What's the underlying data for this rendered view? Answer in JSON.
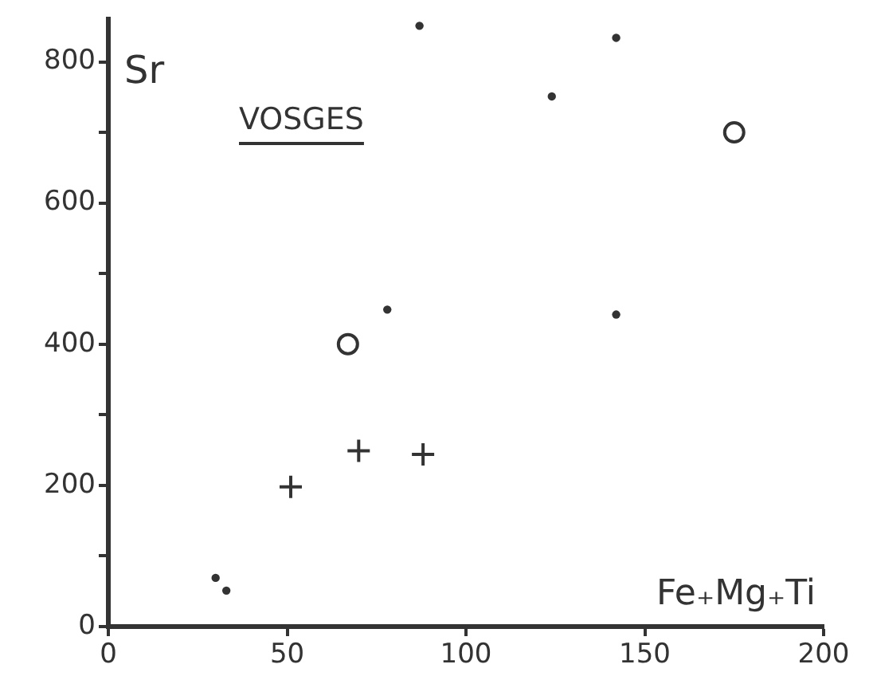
{
  "chart_data": {
    "type": "scatter",
    "title": "VOSGES",
    "xlabel": "Fe₊Mg₊Ti",
    "ylabel": "Sr",
    "series": [
      {
        "color": "#333333",
        "marker": "circle",
        "x": [
          87,
          142,
          124,
          78,
          142,
          30,
          33
        ],
        "values": [
          851,
          834,
          751,
          449,
          442,
          69,
          51
        ]
      },
      {
        "color": "#333333",
        "marker": "circle",
        "x": [
          175,
          67
        ],
        "values": [
          700,
          400
        ]
      },
      {
        "color": "#333333",
        "marker": "cross",
        "x": [
          70,
          88,
          51
        ],
        "values": [
          249,
          244,
          198
        ]
      }
    ],
    "xlim": [
      0,
      200
    ],
    "xticks": [
      0,
      50,
      100,
      150,
      200
    ],
    "ylim": [
      0,
      860
    ],
    "yticks": [
      0,
      {
        "value": 100,
        "label": null
      },
      200,
      {
        "value": 300,
        "label": null
      },
      400,
      {
        "value": 500,
        "label": null
      },
      600,
      {
        "value": 700,
        "label": null
      },
      800
    ],
    "grid": false,
    "legend": false
  }
}
